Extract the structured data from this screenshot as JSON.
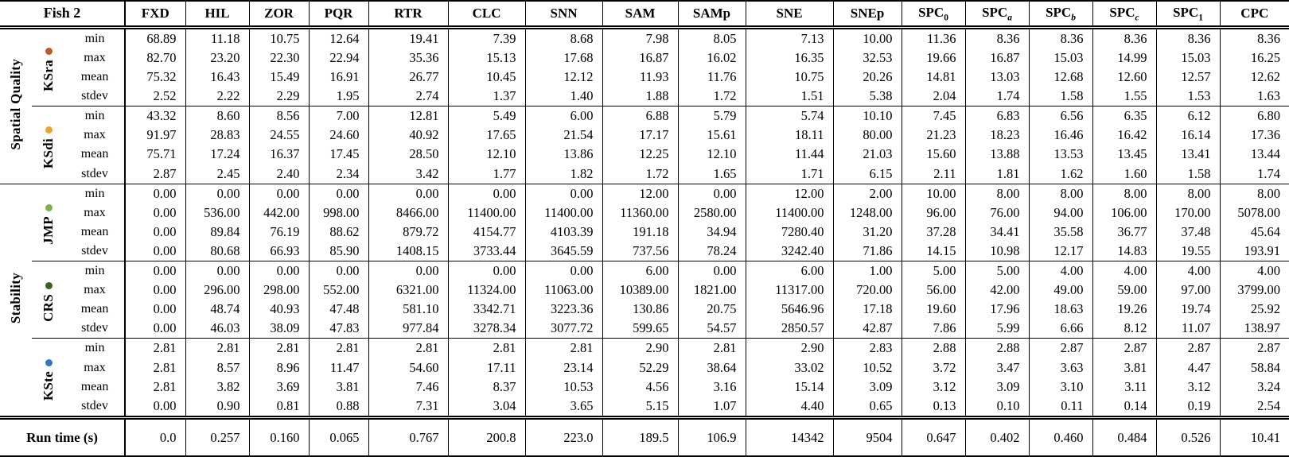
{
  "table": {
    "corner_label": "Fish 2",
    "columns": [
      {
        "base": "FXD"
      },
      {
        "base": "HIL"
      },
      {
        "base": "ZOR"
      },
      {
        "base": "PQR"
      },
      {
        "base": "RTR"
      },
      {
        "base": "CLC"
      },
      {
        "base": "SNN"
      },
      {
        "base": "SAM"
      },
      {
        "base": "SAMp"
      },
      {
        "base": "SNE"
      },
      {
        "base": "SNEp"
      },
      {
        "base": "SPC",
        "sub": "0",
        "sub_italic": false
      },
      {
        "base": "SPC",
        "sub": "a",
        "sub_italic": true
      },
      {
        "base": "SPC",
        "sub": "b",
        "sub_italic": true
      },
      {
        "base": "SPC",
        "sub": "c",
        "sub_italic": true
      },
      {
        "base": "SPC",
        "sub": "1",
        "sub_italic": false
      },
      {
        "base": "CPC"
      }
    ],
    "stat_labels": [
      "min",
      "max",
      "mean",
      "stdev"
    ],
    "sections": [
      {
        "label": "Spatial Quality",
        "groups": [
          {
            "name": "KSra",
            "dot_color": "#C1562B",
            "rows": [
              [
                "68.89",
                "11.18",
                "10.75",
                "12.64",
                "19.41",
                "7.39",
                "8.68",
                "7.98",
                "8.05",
                "7.13",
                "10.00",
                "11.36",
                "8.36",
                "8.36",
                "8.36",
                "8.36",
                "8.36"
              ],
              [
                "82.70",
                "23.20",
                "22.30",
                "22.94",
                "35.36",
                "15.13",
                "17.68",
                "16.87",
                "16.02",
                "16.35",
                "32.53",
                "19.66",
                "16.87",
                "15.03",
                "14.99",
                "15.03",
                "16.25"
              ],
              [
                "75.32",
                "16.43",
                "15.49",
                "16.91",
                "26.77",
                "10.45",
                "12.12",
                "11.93",
                "11.76",
                "10.75",
                "20.26",
                "14.81",
                "13.03",
                "12.68",
                "12.60",
                "12.57",
                "12.62"
              ],
              [
                "2.52",
                "2.22",
                "2.29",
                "1.95",
                "2.74",
                "1.37",
                "1.40",
                "1.88",
                "1.72",
                "1.51",
                "5.38",
                "2.04",
                "1.74",
                "1.58",
                "1.55",
                "1.53",
                "1.63"
              ]
            ]
          },
          {
            "name": "KSdi",
            "dot_color": "#EFA431",
            "rows": [
              [
                "43.32",
                "8.60",
                "8.56",
                "7.00",
                "12.81",
                "5.49",
                "6.00",
                "6.88",
                "5.79",
                "5.74",
                "10.10",
                "7.45",
                "6.83",
                "6.56",
                "6.35",
                "6.12",
                "6.80"
              ],
              [
                "91.97",
                "28.83",
                "24.55",
                "24.60",
                "40.92",
                "17.65",
                "21.54",
                "17.17",
                "15.61",
                "18.11",
                "80.00",
                "21.23",
                "18.23",
                "16.46",
                "16.42",
                "16.14",
                "17.36"
              ],
              [
                "75.71",
                "17.24",
                "16.37",
                "17.45",
                "28.50",
                "12.10",
                "13.86",
                "12.25",
                "12.10",
                "11.44",
                "21.03",
                "15.60",
                "13.88",
                "13.53",
                "13.45",
                "13.41",
                "13.44"
              ],
              [
                "2.87",
                "2.45",
                "2.40",
                "2.34",
                "3.42",
                "1.77",
                "1.82",
                "1.72",
                "1.65",
                "1.71",
                "6.15",
                "2.11",
                "1.81",
                "1.62",
                "1.60",
                "1.58",
                "1.74"
              ]
            ]
          }
        ]
      },
      {
        "label": "Stability",
        "groups": [
          {
            "name": "JMP",
            "dot_color": "#7BB24E",
            "rows": [
              [
                "0.00",
                "0.00",
                "0.00",
                "0.00",
                "0.00",
                "0.00",
                "0.00",
                "12.00",
                "0.00",
                "12.00",
                "2.00",
                "10.00",
                "8.00",
                "8.00",
                "8.00",
                "8.00",
                "8.00"
              ],
              [
                "0.00",
                "536.00",
                "442.00",
                "998.00",
                "8466.00",
                "11400.00",
                "11400.00",
                "11360.00",
                "2580.00",
                "11400.00",
                "1248.00",
                "96.00",
                "76.00",
                "94.00",
                "106.00",
                "170.00",
                "5078.00"
              ],
              [
                "0.00",
                "89.84",
                "76.19",
                "88.62",
                "879.72",
                "4154.77",
                "4103.39",
                "191.18",
                "34.94",
                "7280.40",
                "31.20",
                "37.28",
                "34.41",
                "35.58",
                "36.77",
                "37.48",
                "45.64"
              ],
              [
                "0.00",
                "80.68",
                "66.93",
                "85.90",
                "1408.15",
                "3733.44",
                "3645.59",
                "737.56",
                "78.24",
                "3242.40",
                "71.86",
                "14.15",
                "10.98",
                "12.17",
                "14.83",
                "19.55",
                "193.91"
              ]
            ]
          },
          {
            "name": "CRS",
            "dot_color": "#3E6123",
            "rows": [
              [
                "0.00",
                "0.00",
                "0.00",
                "0.00",
                "0.00",
                "0.00",
                "0.00",
                "6.00",
                "0.00",
                "6.00",
                "1.00",
                "5.00",
                "5.00",
                "4.00",
                "4.00",
                "4.00",
                "4.00"
              ],
              [
                "0.00",
                "296.00",
                "298.00",
                "552.00",
                "6321.00",
                "11324.00",
                "11063.00",
                "10389.00",
                "1821.00",
                "11317.00",
                "720.00",
                "56.00",
                "42.00",
                "49.00",
                "59.00",
                "97.00",
                "3799.00"
              ],
              [
                "0.00",
                "48.74",
                "40.93",
                "47.48",
                "581.10",
                "3342.71",
                "3223.36",
                "130.86",
                "20.75",
                "5646.96",
                "17.18",
                "19.60",
                "17.96",
                "18.63",
                "19.26",
                "19.74",
                "25.92"
              ],
              [
                "0.00",
                "46.03",
                "38.09",
                "47.83",
                "977.84",
                "3278.34",
                "3077.72",
                "599.65",
                "54.57",
                "2850.57",
                "42.87",
                "7.86",
                "5.99",
                "6.66",
                "8.12",
                "11.07",
                "138.97"
              ]
            ]
          },
          {
            "name": "KSte",
            "dot_color": "#2E78C0",
            "rows": [
              [
                "2.81",
                "2.81",
                "2.81",
                "2.81",
                "2.81",
                "2.81",
                "2.81",
                "2.90",
                "2.81",
                "2.90",
                "2.83",
                "2.88",
                "2.88",
                "2.87",
                "2.87",
                "2.87",
                "2.87"
              ],
              [
                "2.81",
                "8.57",
                "8.96",
                "11.47",
                "54.60",
                "17.11",
                "23.14",
                "52.29",
                "38.64",
                "33.02",
                "10.52",
                "3.72",
                "3.47",
                "3.63",
                "3.81",
                "4.47",
                "58.84"
              ],
              [
                "2.81",
                "3.82",
                "3.69",
                "3.81",
                "7.46",
                "8.37",
                "10.53",
                "4.56",
                "3.16",
                "15.14",
                "3.09",
                "3.12",
                "3.09",
                "3.10",
                "3.11",
                "3.12",
                "3.24"
              ],
              [
                "0.00",
                "0.90",
                "0.81",
                "0.88",
                "7.31",
                "3.04",
                "3.65",
                "5.15",
                "1.07",
                "4.40",
                "0.65",
                "0.13",
                "0.10",
                "0.11",
                "0.14",
                "0.19",
                "2.54"
              ]
            ]
          }
        ]
      }
    ],
    "runtime": {
      "label": "Run time (s)",
      "values": [
        "0.0",
        "0.257",
        "0.160",
        "0.065",
        "0.767",
        "200.8",
        "223.0",
        "189.5",
        "106.9",
        "14342",
        "9504",
        "0.647",
        "0.402",
        "0.460",
        "0.484",
        "0.526",
        "10.41"
      ]
    }
  }
}
